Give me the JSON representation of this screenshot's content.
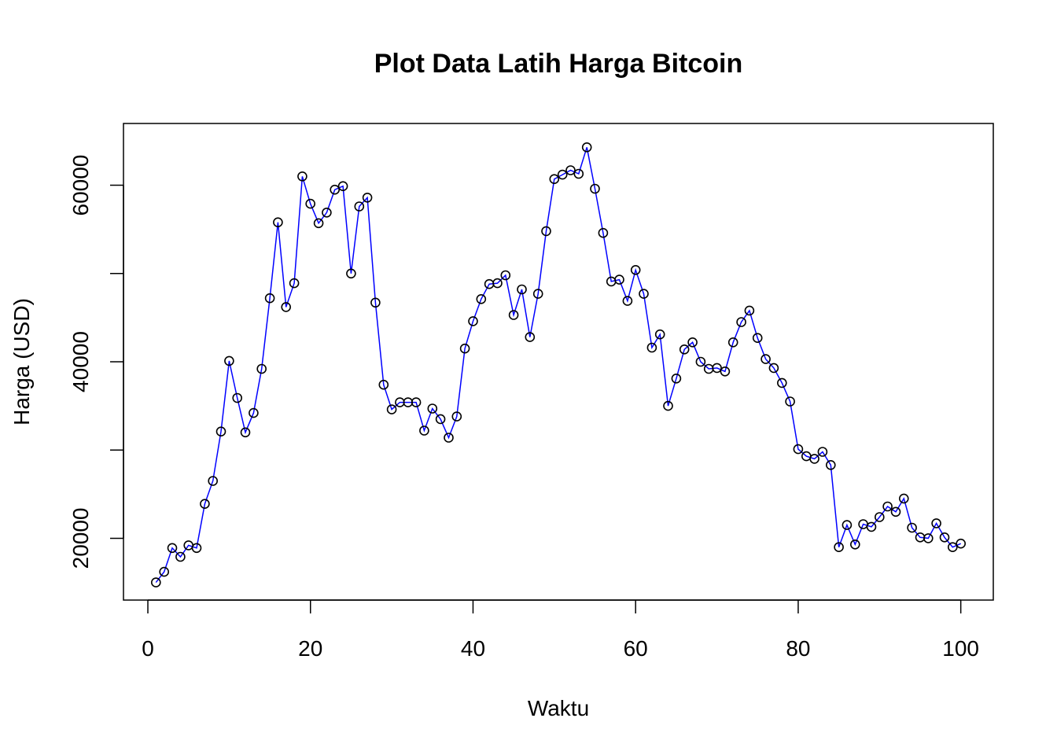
{
  "chart_data": {
    "type": "line",
    "title": "Plot Data Latih Harga Bitcoin",
    "xlabel": "Waktu",
    "ylabel": "Harga (USD)",
    "xlim": [
      -3,
      104
    ],
    "ylim": [
      13000,
      67000
    ],
    "xticks": [
      0,
      20,
      40,
      60,
      80,
      100
    ],
    "yticks": [
      20000,
      30000,
      40000,
      50000,
      60000
    ],
    "ytick_labels": [
      "20000",
      "",
      "40000",
      "",
      "60000"
    ],
    "grid": false,
    "marker": "open-circle",
    "marker_color": "#000000",
    "line_color": "#0000ff",
    "series": [
      {
        "x": [
          1,
          2,
          3,
          4,
          5,
          6,
          7,
          8,
          9,
          10,
          11,
          12,
          13,
          14,
          15,
          16,
          17,
          18,
          19,
          20,
          21,
          22,
          23,
          24,
          25,
          26,
          27,
          28,
          29,
          30,
          31,
          32,
          33,
          34,
          35,
          36,
          37,
          38,
          39,
          40,
          41,
          42,
          43,
          44,
          45,
          46,
          47,
          48,
          49,
          50,
          51,
          52,
          53,
          54,
          55,
          56,
          57,
          58,
          59,
          60,
          61,
          62,
          63,
          64,
          65,
          66,
          67,
          68,
          69,
          70,
          71,
          72,
          73,
          74,
          75,
          76,
          77,
          78,
          79,
          80,
          81,
          82,
          83,
          84,
          85,
          86,
          87,
          88,
          89,
          90,
          91,
          92,
          93,
          94,
          95,
          96,
          97,
          98,
          99,
          100
        ],
        "values": [
          15000,
          16200,
          18900,
          17900,
          19200,
          18900,
          23900,
          26500,
          32100,
          40100,
          35900,
          32000,
          34200,
          39200,
          47200,
          55800,
          46200,
          48900,
          61000,
          57900,
          55700,
          56900,
          59500,
          59900,
          50000,
          57600,
          58600,
          46700,
          37400,
          34600,
          35400,
          35400,
          35400,
          32200,
          34700,
          33500,
          31400,
          33800,
          41500,
          44600,
          47100,
          48800,
          48900,
          49800,
          45300,
          48200,
          42800,
          47700,
          54800,
          60700,
          61200,
          61700,
          61300,
          64300,
          59600,
          54600,
          49100,
          49300,
          46900,
          50400,
          47700,
          41600,
          43100,
          35000,
          38100,
          41400,
          42200,
          40000,
          39200,
          39300,
          38900,
          42200,
          44500,
          45800,
          42700,
          40300,
          39300,
          37600,
          35500,
          30100,
          29300,
          29000,
          29800,
          28300,
          19000,
          21500,
          19300,
          21600,
          21300,
          22400,
          23600,
          23000,
          24500,
          21200,
          20100,
          20000,
          21700,
          20100,
          19000,
          19400
        ]
      }
    ]
  }
}
